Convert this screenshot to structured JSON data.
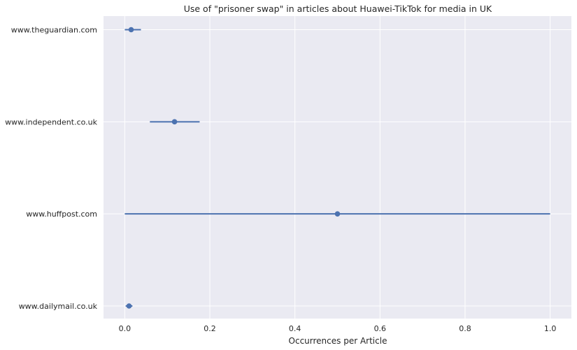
{
  "chart_data": {
    "type": "scatter",
    "title": "Use of \"prisoner swap\" in articles about Huawei-TikTok for media in UK",
    "xlabel": "Occurrences per Article",
    "ylabel": "",
    "xlim": [
      -0.05,
      1.05
    ],
    "x_ticks": [
      "0.0",
      "0.2",
      "0.4",
      "0.6",
      "0.8",
      "1.0"
    ],
    "categories": [
      "www.theguardian.com",
      "www.independent.co.uk",
      "www.huffpost.com",
      "www.dailymail.co.uk"
    ],
    "points": [
      {
        "category": "www.theguardian.com",
        "value": 0.015,
        "ci_low": 0.0,
        "ci_high": 0.038
      },
      {
        "category": "www.independent.co.uk",
        "value": 0.117,
        "ci_low": 0.059,
        "ci_high": 0.176
      },
      {
        "category": "www.huffpost.com",
        "value": 0.5,
        "ci_low": 0.0,
        "ci_high": 1.0
      },
      {
        "category": "www.dailymail.co.uk",
        "value": 0.01,
        "ci_low": 0.002,
        "ci_high": 0.018
      }
    ],
    "grid": true,
    "colors": {
      "background": "#eaeaf2",
      "grid": "#ffffff",
      "marker": "#4c72b0"
    }
  }
}
